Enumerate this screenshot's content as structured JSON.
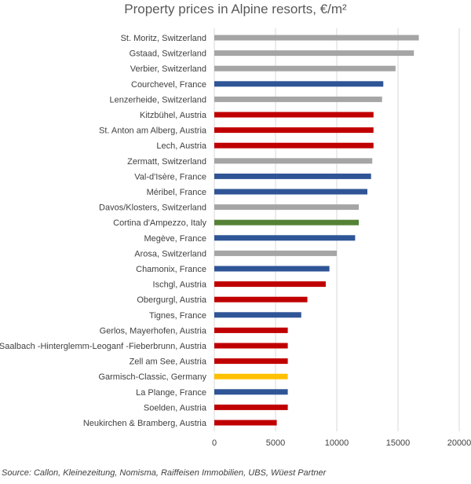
{
  "chart_data": {
    "type": "bar",
    "orientation": "horizontal",
    "title": "Property prices in Alpine resorts,  €/m²",
    "source": "Source: Callon, Kleinezeitung, Nomisma, Raiffeisen Immobilien, UBS, Wüest Partner",
    "xlim": [
      0,
      20000
    ],
    "xticks": [
      0,
      5000,
      10000,
      15000,
      20000
    ],
    "grid": true,
    "legend": "none",
    "colors": {
      "Switzerland": "#a5a5a5",
      "France": "#2f5597",
      "Austria": "#c00000",
      "Italy": "#548235",
      "Germany": "#ffc000"
    },
    "categories": [
      "St. Moritz, Switzerland",
      "Gstaad, Switzerland",
      "Verbier, Switzerland",
      "Courchevel, France",
      "Lenzerheide, Switzerland",
      "Kitzbühel, Austria",
      "St. Anton am Alberg, Austria",
      "Lech, Austria",
      "Zermatt, Switzerland",
      "Val-d'Isère, France",
      "Méribel, France",
      "Davos/Klosters, Switzerland",
      "Cortina d'Ampezzo, Italy",
      "Megève, France",
      "Arosa, Switzerland",
      "Chamonix, France",
      "Ischgl, Austria",
      "Obergurgl, Austria",
      "Tignes, France",
      "Gerlos, Mayerhofen, Austria",
      "Saalbach -Hinterglemm-Leoganf -Fieberbrunn, Austria",
      "Zell am See, Austria",
      "Garmisch-Classic, Germany",
      "La Plange, France",
      "Soelden, Austria",
      "Neukirchen & Bramberg, Austria"
    ],
    "values": [
      16700,
      16300,
      14800,
      13800,
      13700,
      13000,
      13000,
      13000,
      12900,
      12800,
      12500,
      11800,
      11800,
      11500,
      10000,
      9400,
      9100,
      7600,
      7100,
      6000,
      6000,
      6000,
      6000,
      6000,
      6000,
      5100
    ],
    "bar_colors": [
      "#a5a5a5",
      "#a5a5a5",
      "#a5a5a5",
      "#2f5597",
      "#a5a5a5",
      "#c00000",
      "#c00000",
      "#c00000",
      "#a5a5a5",
      "#2f5597",
      "#2f5597",
      "#a5a5a5",
      "#548235",
      "#2f5597",
      "#a5a5a5",
      "#2f5597",
      "#c00000",
      "#c00000",
      "#2f5597",
      "#c00000",
      "#c00000",
      "#c00000",
      "#ffc000",
      "#2f5597",
      "#c00000",
      "#c00000"
    ]
  }
}
